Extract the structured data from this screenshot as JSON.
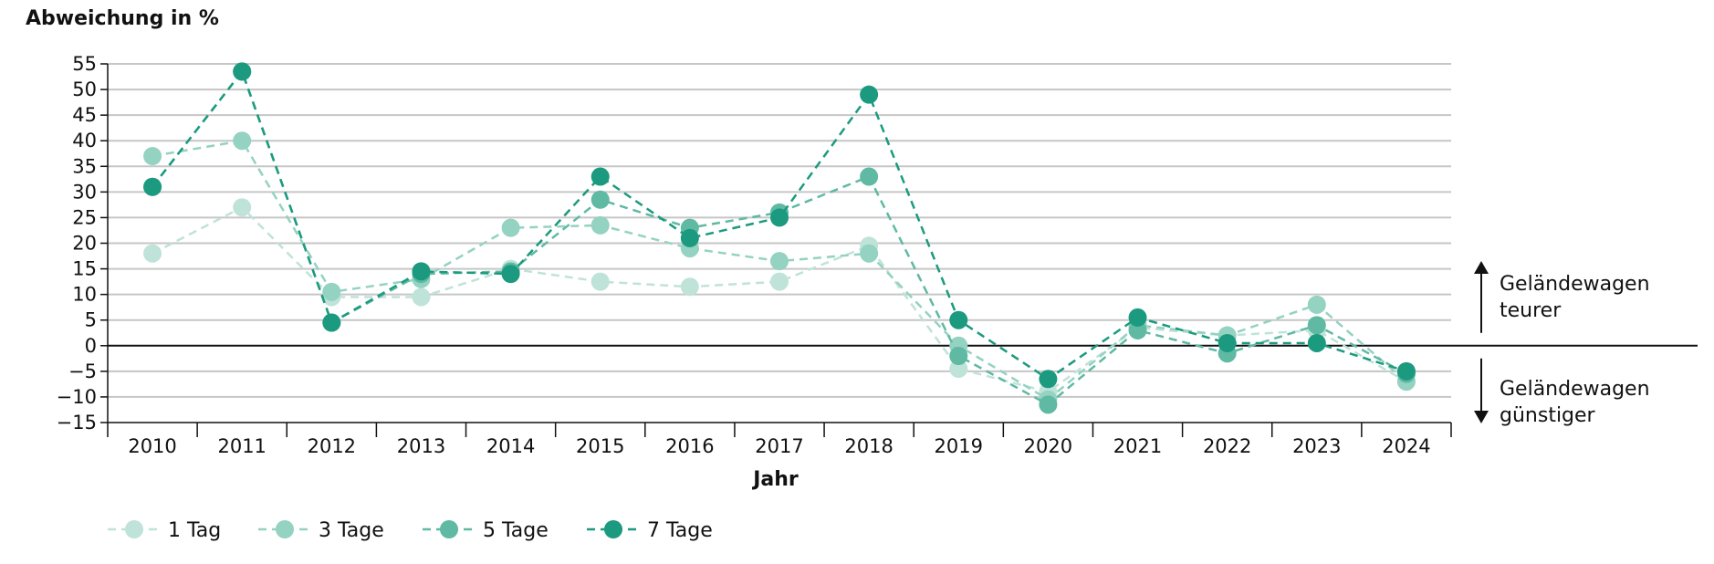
{
  "chart_data": {
    "type": "line",
    "ylabel": "Abweichung in %",
    "xlabel": "Jahr",
    "ylim": [
      -15,
      55
    ],
    "yticks": [
      55,
      50,
      45,
      40,
      35,
      30,
      25,
      20,
      15,
      10,
      5,
      0,
      -5,
      -10,
      -15
    ],
    "categories": [
      "2010",
      "2011",
      "2012",
      "2013",
      "2014",
      "2015",
      "2016",
      "2017",
      "2018",
      "2019",
      "2020",
      "2021",
      "2022",
      "2023",
      "2024"
    ],
    "grid": "horizontal",
    "legend": "bottom",
    "series": [
      {
        "name": "1 Tag",
        "color": "#bfe3d8",
        "values": [
          18,
          27,
          9.5,
          9.5,
          15,
          12.5,
          11.5,
          12.5,
          19.5,
          -4.5,
          -9,
          3.5,
          2,
          3,
          -7
        ]
      },
      {
        "name": "3 Tage",
        "color": "#94d2c1",
        "values": [
          37,
          40,
          10.5,
          13,
          23,
          23.5,
          19,
          16.5,
          18,
          0,
          -10.5,
          4,
          2,
          8,
          -7
        ]
      },
      {
        "name": "5 Tage",
        "color": "#5fb9a3",
        "values": [
          31,
          53.5,
          4.5,
          14,
          14.5,
          28.5,
          23,
          26,
          33,
          -2,
          -11.5,
          3,
          -1.5,
          4,
          -5.5
        ]
      },
      {
        "name": "7 Tage",
        "color": "#1b9a7f",
        "values": [
          31,
          53.5,
          4.5,
          14.5,
          14,
          33,
          21,
          25,
          49,
          5,
          -6.5,
          5.5,
          0.5,
          0.5,
          -5
        ]
      }
    ],
    "annotations": {
      "up": "Geländewagen\nteurer",
      "down": "Geländewagen\ngünstiger"
    }
  }
}
